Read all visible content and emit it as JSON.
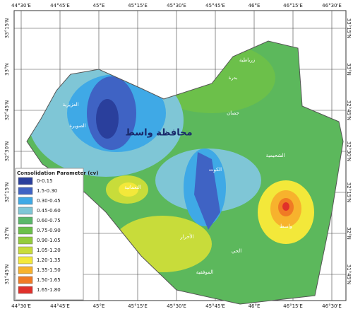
{
  "top_axis": {
    "labels": [
      "44°30'E",
      "44°45'E",
      "45°E",
      "45°15'E",
      "45°30'E",
      "45°45'E",
      "46°E",
      "46°15'E",
      "46°30'E"
    ]
  },
  "bottom_axis": {
    "labels": [
      "44°30'E",
      "44°45'E",
      "45°E",
      "45°15'E",
      "45°30'E",
      "45°45'E",
      "46°E",
      "46°15'E",
      "46°30'E"
    ]
  },
  "left_axis": {
    "labels": [
      "33°15'N",
      "33°N",
      "32°45'N",
      "32°30'N",
      "32°15'N",
      "32°N",
      "31°45'N"
    ]
  },
  "right_axis": {
    "labels": [
      "33°15'N",
      "33°N",
      "32°45'N",
      "32°30'N",
      "32°15'N",
      "32°N",
      "31°45'N"
    ]
  },
  "legend": {
    "title": "Consolidation Parameter (cv)",
    "items": [
      {
        "label": "0-0.15",
        "color": "#2a3f9c"
      },
      {
        "label": "1.5-0.30",
        "color": "#3f63c4"
      },
      {
        "label": "0.30-0.45",
        "color": "#3fa9e6"
      },
      {
        "label": "0.45-0.60",
        "color": "#7fc6d6"
      },
      {
        "label": "0.60-0.75",
        "color": "#5bb86a"
      },
      {
        "label": "0.75-0.90",
        "color": "#6cc04a"
      },
      {
        "label": "0.90-1.05",
        "color": "#93cc3c"
      },
      {
        "label": "1.05-1.20",
        "color": "#c8dc3a"
      },
      {
        "label": "1.20-1.35",
        "color": "#f3e83a"
      },
      {
        "label": "1.35-1.50",
        "color": "#f7b22d"
      },
      {
        "label": "1.50-1.65",
        "color": "#f07a24"
      },
      {
        "label": "1.65-1.80",
        "color": "#e0302a"
      }
    ]
  },
  "places": {
    "province": "محافظة واسط",
    "names": [
      "الكوت",
      "الصويرة",
      "النعمانية",
      "العزيزية",
      "بدرة",
      "زرباطية",
      "الحي",
      "جصان",
      "الشحيمية",
      "واسط",
      "الأحرار",
      "الموفقية"
    ]
  }
}
